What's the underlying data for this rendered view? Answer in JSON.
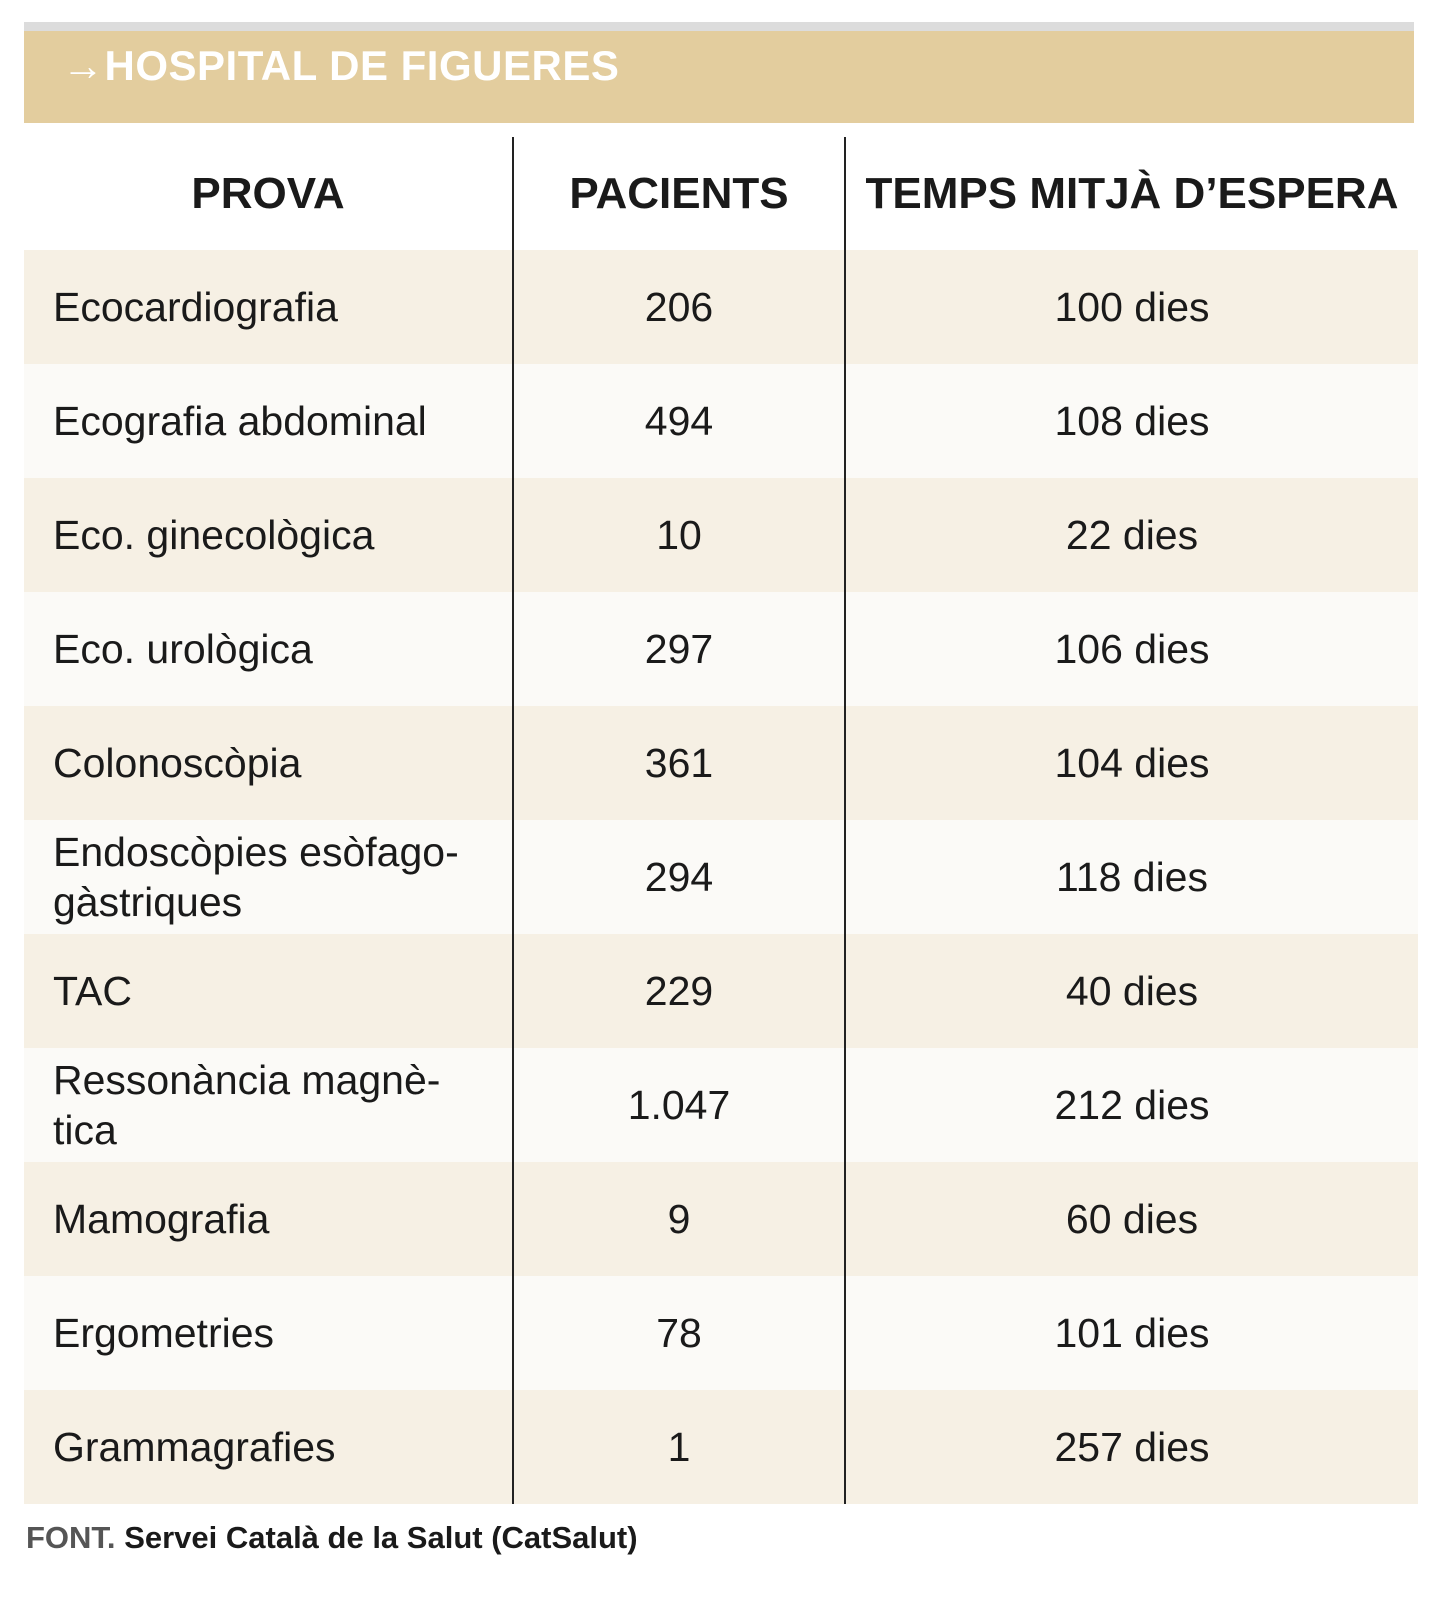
{
  "header": {
    "title": "→HOSPITAL DE FIGUERES"
  },
  "table": {
    "columns": [
      "PROVA",
      "PACIENTS",
      "TEMPS MITJÀ D’ESPERA"
    ],
    "rows": [
      [
        "Ecocardiografia",
        "206",
        "100 dies"
      ],
      [
        "Ecografia abdominal",
        "494",
        "108 dies"
      ],
      [
        "Eco. ginecològica",
        "10",
        "22 dies"
      ],
      [
        "Eco. urològica",
        "297",
        "106 dies"
      ],
      [
        "Colonoscòpia",
        "361",
        "104 dies"
      ],
      [
        "Endoscòpies esòfago-gàstriques",
        "294",
        "118 dies"
      ],
      [
        "TAC",
        "229",
        "40 dies"
      ],
      [
        "Ressonància magnè-tica",
        "1.047",
        "212 dies"
      ],
      [
        "Mamografia",
        "9",
        "60 dies"
      ],
      [
        "Ergometries",
        "78",
        "101 dies"
      ],
      [
        "Grammagrafies",
        "1",
        "257 dies"
      ]
    ]
  },
  "source": {
    "label": "FONT.",
    "text": "Servei Català de la Salut (CatSalut)"
  }
}
